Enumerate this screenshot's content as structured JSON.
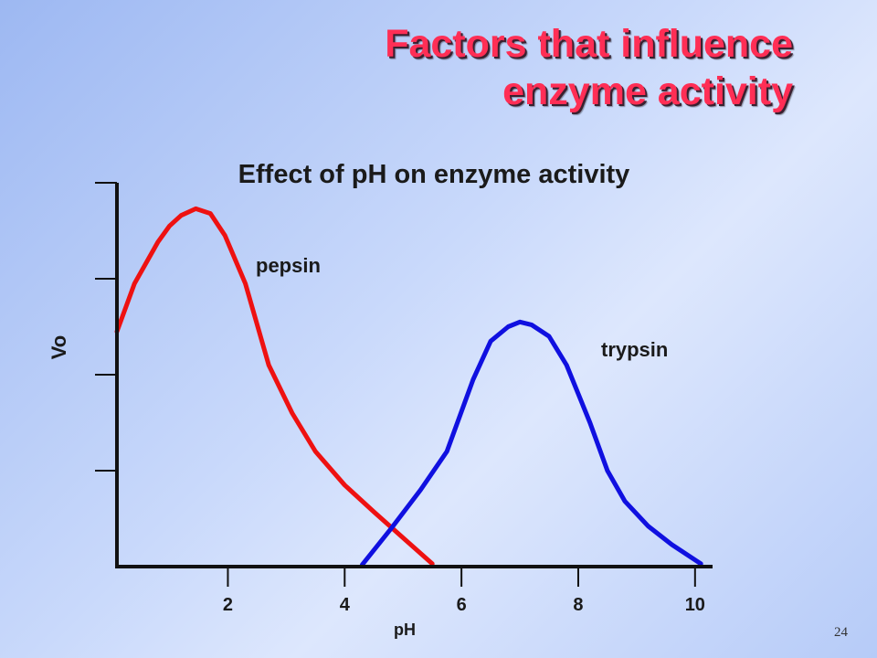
{
  "slide": {
    "title_line1": "Factors that influence",
    "title_line2": "enzyme activity",
    "page_number": "24",
    "title_color": "#ff2e55"
  },
  "chart_data": {
    "type": "line",
    "title": "Effect of pH on enzyme activity",
    "xlabel": "pH",
    "ylabel": "Vo",
    "xlim": [
      0.1,
      10.3
    ],
    "ylim": [
      0,
      4
    ],
    "xticks": [
      2,
      4,
      6,
      8,
      10
    ],
    "yticks": [
      1,
      2,
      3,
      4
    ],
    "show_y_tick_labels": false,
    "grid": false,
    "legend": "none (series labeled inline)",
    "series": [
      {
        "name": "pepsin",
        "color": "#ee1111",
        "x": [
          0.1,
          0.4,
          0.8,
          1.0,
          1.2,
          1.45,
          1.7,
          1.95,
          2.3,
          2.7,
          3.1,
          3.5,
          4.0,
          4.5,
          5.0,
          5.5
        ],
        "y": [
          2.45,
          2.95,
          3.38,
          3.55,
          3.66,
          3.73,
          3.68,
          3.45,
          2.95,
          2.1,
          1.6,
          1.2,
          0.85,
          0.57,
          0.3,
          0.03
        ]
      },
      {
        "name": "trypsin",
        "color": "#1010e0",
        "x": [
          4.3,
          4.8,
          5.3,
          5.75,
          6.2,
          6.5,
          6.8,
          7.0,
          7.2,
          7.5,
          7.8,
          8.2,
          8.5,
          8.8,
          9.2,
          9.6,
          10.1
        ],
        "y": [
          0.02,
          0.4,
          0.8,
          1.2,
          1.95,
          2.35,
          2.5,
          2.55,
          2.52,
          2.4,
          2.1,
          1.5,
          1.0,
          0.68,
          0.42,
          0.23,
          0.03
        ]
      }
    ]
  }
}
